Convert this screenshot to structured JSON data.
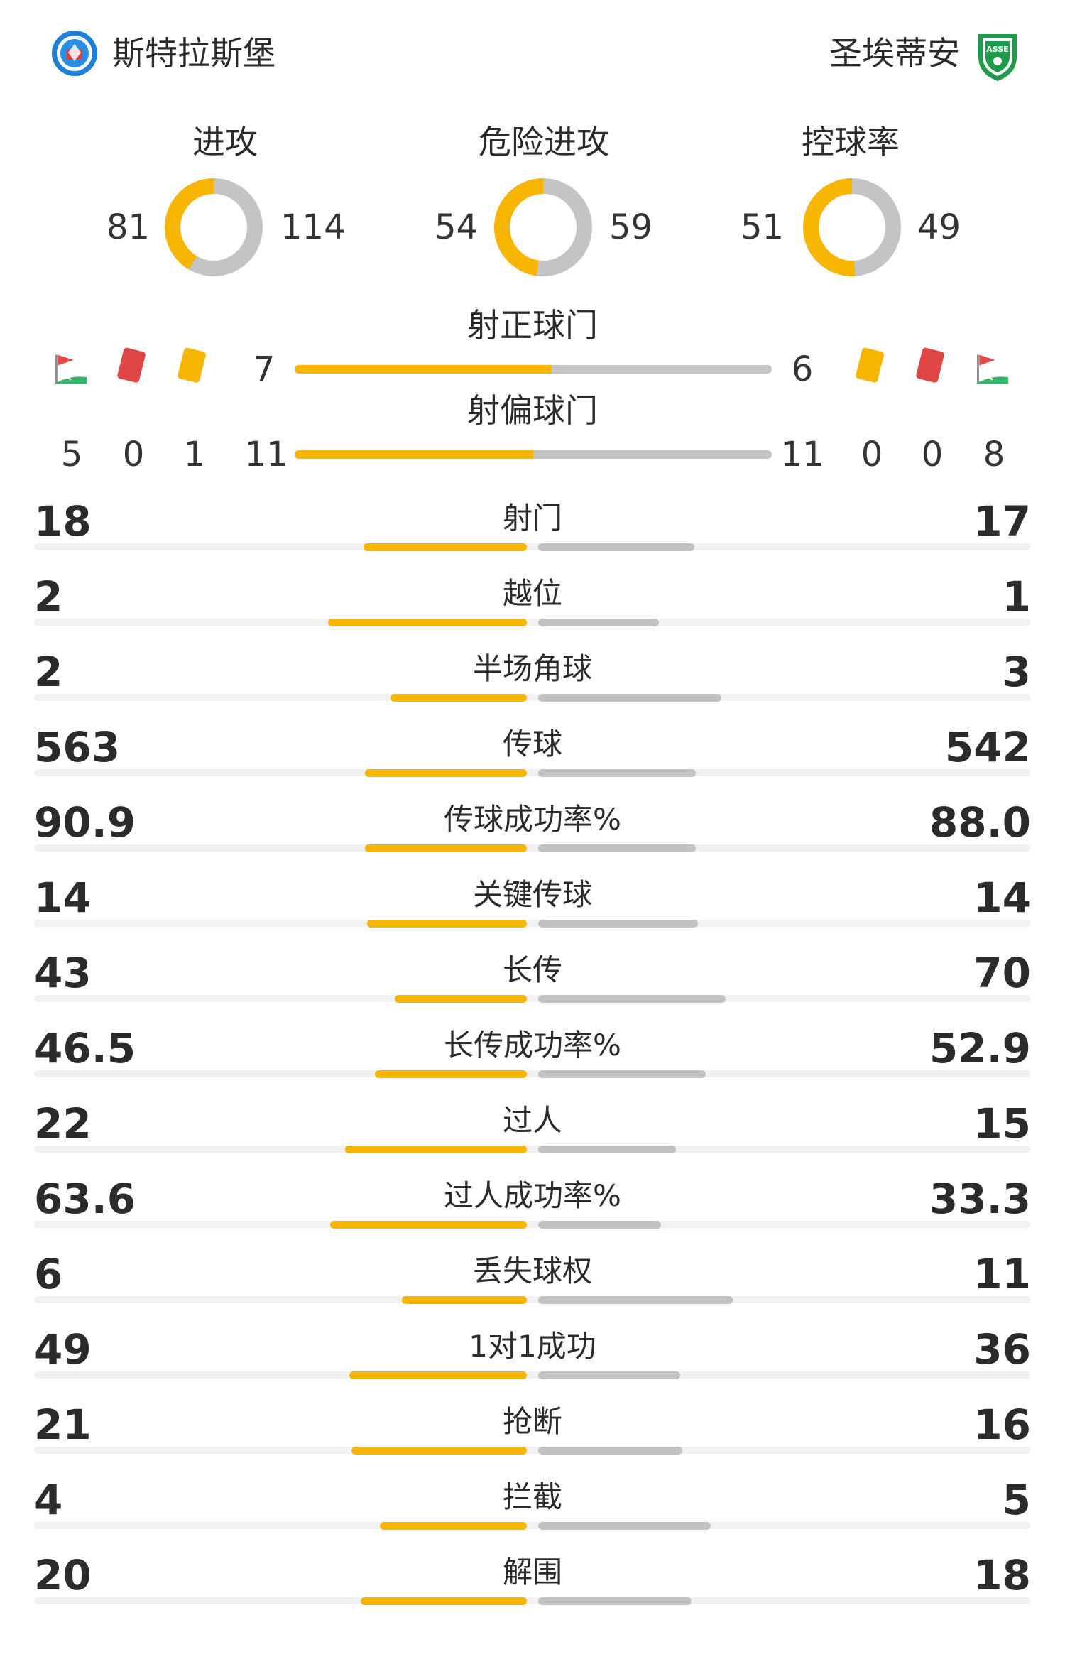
{
  "home": {
    "name": "斯特拉斯堡",
    "logo": "strasbourg-crest"
  },
  "away": {
    "name": "圣埃蒂安",
    "logo": "saint-etienne-crest",
    "logo_text": "ASSE"
  },
  "colors": {
    "home": "#f7b500",
    "away": "#c4c4c4"
  },
  "circles": [
    {
      "title": "进攻",
      "home": "81",
      "away": "114",
      "home_share": 0.415
    },
    {
      "title": "危险进攻",
      "home": "54",
      "away": "59",
      "home_share": 0.478
    },
    {
      "title": "控球率",
      "home": "51",
      "away": "49",
      "home_share": 0.51
    }
  ],
  "on_target": {
    "title": "射正球门",
    "home": "7",
    "away": "6",
    "home_share": 0.538
  },
  "off_target": {
    "title": "射偏球门",
    "home": "11",
    "away": "11",
    "home_share": 0.5
  },
  "home_discipline": {
    "corners": "5",
    "red_cards": "0",
    "yellow_cards": "1"
  },
  "away_discipline": {
    "yellow_cards": "0",
    "red_cards": "0",
    "corners": "8"
  },
  "icons": {
    "corner": "corner-flag-icon",
    "red": "red-card-icon",
    "yellow": "yellow-card-icon"
  },
  "stats": [
    {
      "name": "射门",
      "home": "18",
      "away": "17"
    },
    {
      "name": "越位",
      "home": "2",
      "away": "1"
    },
    {
      "name": "半场角球",
      "home": "2",
      "away": "3"
    },
    {
      "name": "传球",
      "home": "563",
      "away": "542"
    },
    {
      "name": "传球成功率%",
      "home": "90.9",
      "away": "88.0"
    },
    {
      "name": "关键传球",
      "home": "14",
      "away": "14"
    },
    {
      "name": "长传",
      "home": "43",
      "away": "70"
    },
    {
      "name": "长传成功率%",
      "home": "46.5",
      "away": "52.9"
    },
    {
      "name": "过人",
      "home": "22",
      "away": "15"
    },
    {
      "name": "过人成功率%",
      "home": "63.6",
      "away": "33.3"
    },
    {
      "name": "丢失球权",
      "home": "6",
      "away": "11"
    },
    {
      "name": "1对1成功",
      "home": "49",
      "away": "36"
    },
    {
      "name": "抢断",
      "home": "21",
      "away": "16"
    },
    {
      "name": "拦截",
      "home": "4",
      "away": "5"
    },
    {
      "name": "解围",
      "home": "20",
      "away": "18"
    }
  ]
}
